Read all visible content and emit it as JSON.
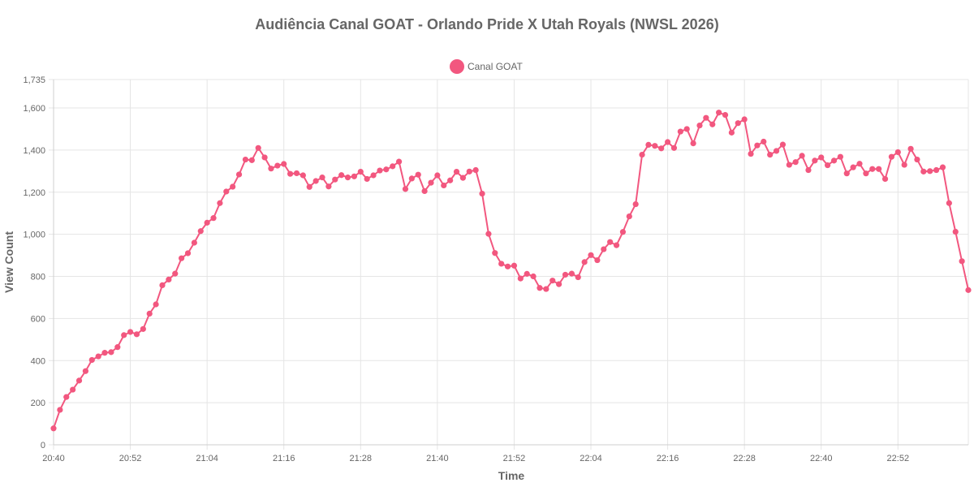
{
  "chart_data": {
    "type": "line",
    "title": "Audiência Canal GOAT - Orlando Pride X Utah Royals (NWSL 2026)",
    "xlabel": "Time",
    "ylabel": "View Count",
    "ylim": [
      0,
      1735
    ],
    "y_ticks": [
      0,
      200,
      400,
      600,
      800,
      1000,
      1200,
      1400,
      1600,
      1735
    ],
    "y_tick_labels": [
      "0",
      "200",
      "400",
      "600",
      "800",
      "1,000",
      "1,200",
      "1,400",
      "1,600",
      "1,735"
    ],
    "x_tick_labels": [
      "20:40",
      "20:52",
      "21:04",
      "21:16",
      "21:28",
      "21:40",
      "21:52",
      "22:04",
      "22:16",
      "22:28",
      "22:40",
      "22:52"
    ],
    "x_tick_every": 12,
    "x_start": "20:40",
    "x_step_minutes": 1,
    "grid": true,
    "legend_position": "top",
    "series": [
      {
        "name": "Canal GOAT",
        "color": "#f2577f",
        "values": [
          78,
          166,
          227,
          262,
          305,
          350,
          403,
          420,
          437,
          440,
          464,
          521,
          536,
          525,
          550,
          623,
          667,
          758,
          785,
          813,
          886,
          910,
          960,
          1015,
          1055,
          1077,
          1148,
          1203,
          1226,
          1284,
          1355,
          1352,
          1410,
          1365,
          1312,
          1326,
          1334,
          1287,
          1290,
          1280,
          1225,
          1253,
          1270,
          1227,
          1260,
          1281,
          1270,
          1275,
          1297,
          1263,
          1280,
          1303,
          1308,
          1323,
          1345,
          1215,
          1265,
          1283,
          1205,
          1245,
          1280,
          1232,
          1256,
          1297,
          1268,
          1298,
          1305,
          1193,
          1002,
          911,
          860,
          847,
          851,
          790,
          812,
          800,
          745,
          740,
          780,
          763,
          808,
          813,
          796,
          868,
          901,
          877,
          929,
          963,
          948,
          1011,
          1085,
          1143,
          1378,
          1425,
          1420,
          1408,
          1438,
          1410,
          1488,
          1500,
          1432,
          1517,
          1553,
          1522,
          1578,
          1567,
          1483,
          1528,
          1546,
          1382,
          1422,
          1440,
          1378,
          1396,
          1426,
          1330,
          1343,
          1373,
          1305,
          1350,
          1365,
          1328,
          1350,
          1368,
          1289,
          1318,
          1335,
          1289,
          1310,
          1310,
          1263,
          1368,
          1390,
          1330,
          1406,
          1355,
          1298,
          1300,
          1305,
          1318,
          1148,
          1012,
          872,
          735
        ]
      }
    ]
  }
}
